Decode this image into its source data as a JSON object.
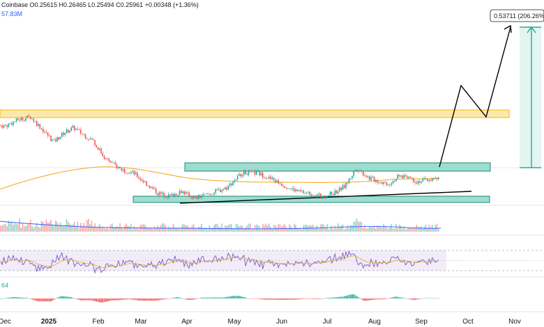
{
  "header": {
    "ohlc_text": "Coinbase  O0.25615  H0.26465  L0.25494  C0.25961  +0.00348 (+1.36%)",
    "volume_text": "57.83M",
    "macd_text": "64"
  },
  "projection": {
    "target_label": "0.53711 (206.26%)"
  },
  "colors": {
    "up": "#26a69a",
    "down": "#ef5350",
    "zone_yellow": "#fcd668",
    "zone_teal": "#7dd1bf",
    "ma_orange": "#f7a21b",
    "rsi_purple": "#7e57c2",
    "rsi_ma_yellow": "#e0b23a",
    "projection": "#000000",
    "measure": "#089981"
  },
  "chart_data": {
    "type": "candlestick",
    "x_ticks": [
      "Dec",
      "2025",
      "Feb",
      "Mar",
      "Apr",
      "May",
      "Jun",
      "Jul",
      "Aug",
      "Sep",
      "Oct",
      "Nov"
    ],
    "price_path": [
      [
        "Dec",
        0.34
      ],
      [
        "Dec",
        0.355
      ],
      [
        "Dec",
        0.362
      ],
      [
        "Dec",
        0.33
      ],
      [
        "2025",
        0.3
      ],
      [
        "2025",
        0.322
      ],
      [
        "2025",
        0.335
      ],
      [
        "2025",
        0.318
      ],
      [
        "2025",
        0.302
      ],
      [
        "Feb",
        0.258
      ],
      [
        "Feb",
        0.234
      ],
      [
        "Feb",
        0.222
      ],
      [
        "Mar",
        0.196
      ],
      [
        "Mar",
        0.172
      ],
      [
        "Mar",
        0.165
      ],
      [
        "Mar",
        0.178
      ],
      [
        "Apr",
        0.16
      ],
      [
        "Apr",
        0.172
      ],
      [
        "Apr",
        0.186
      ],
      [
        "May",
        0.224
      ],
      [
        "May",
        0.222
      ],
      [
        "May",
        0.205
      ],
      [
        "Jun",
        0.188
      ],
      [
        "Jun",
        0.176
      ],
      [
        "Jun",
        0.172
      ],
      [
        "Jun",
        0.165
      ],
      [
        "Jul",
        0.172
      ],
      [
        "Jul",
        0.19
      ],
      [
        "Jul",
        0.236
      ],
      [
        "Jul",
        0.211
      ],
      [
        "Aug",
        0.202
      ],
      [
        "Aug",
        0.196
      ],
      [
        "Aug",
        0.213
      ],
      [
        "Aug",
        0.216
      ],
      [
        "Aug",
        0.202
      ],
      [
        "Sep",
        0.206
      ],
      [
        "Sep",
        0.21
      ],
      [
        "Sep",
        0.236
      ]
    ],
    "horizontal_zones": [
      {
        "name": "resistance_top",
        "from": 0.35,
        "to": 0.366
      },
      {
        "name": "range_top",
        "from": 0.219,
        "to": 0.236
      },
      {
        "name": "range_bottom",
        "from": 0.155,
        "to": 0.162
      }
    ],
    "projection_path": [
      [
        "Sep",
        0.236
      ],
      [
        "Sep",
        0.435
      ],
      [
        "Oct",
        0.361
      ],
      [
        "Oct",
        0.537
      ]
    ],
    "target_price": 0.53711,
    "target_change_pct": 206.26
  }
}
